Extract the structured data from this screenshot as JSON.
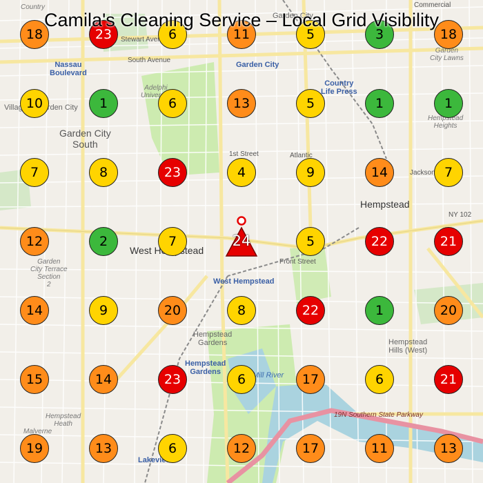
{
  "title": "Camila's Cleaning Service – Local Grid Visibility",
  "business_rank": "24",
  "colors": {
    "green": "#3cb83c",
    "yellow": "#ffd400",
    "orange": "#ff8c1a",
    "red": "#e60000",
    "business": "#e60000"
  },
  "grid": [
    [
      "18",
      "23",
      "6",
      "11",
      "5",
      "3",
      "18"
    ],
    [
      "10",
      "1",
      "6",
      "13",
      "5",
      "1",
      "1"
    ],
    [
      "7",
      "8",
      "23",
      "4",
      "9",
      "14",
      "7"
    ],
    [
      "12",
      "2",
      "7",
      "24",
      "5",
      "22",
      "21"
    ],
    [
      "14",
      "9",
      "20",
      "8",
      "22",
      "1",
      "20"
    ],
    [
      "15",
      "14",
      "23",
      "6",
      "17",
      "6",
      "21"
    ],
    [
      "19",
      "13",
      "6",
      "12",
      "17",
      "11",
      "13"
    ]
  ],
  "map_labels": {
    "garden_city": "Garden City",
    "garden_city_top": "Garden City",
    "nassau_boulevard": "Nassau\nBoulevard",
    "adelphi": "Adelphi\nUniversity",
    "village_garden_city": "Village of Garden City",
    "garden_city_south": "Garden City\nSouth",
    "country_life_press": "Country\nLife Press",
    "garden_city_lawns": "Garden\nCity Lawns",
    "hempstead_heights": "Hempstead\nHeights",
    "hempstead": "Hempstead",
    "west_hempstead": "West Hempstead",
    "west_hempstead_station": "West Hempstead",
    "gc_terrace": "Garden\nCity Terrace\nSection\n2",
    "hempstead_gardens": "Hempstead\nGardens",
    "hempstead_gardens_station": "Hempstead\nGardens",
    "hempstead_hills": "Hempstead\nHills (West)",
    "hempstead_heath": "Hempstead\nHeath",
    "malverne": "Malverne",
    "lakeview": "Lakeview",
    "mill_river": "Mill River",
    "southern_state": "19N Southern State Parkway",
    "ny102": "NY 102",
    "front_street": "Front Street",
    "stewart_avenue": "Stewart Avenue",
    "south_avenue": "South Avenue",
    "first_street": "1st Street",
    "atlantic": "Atlantic",
    "jackson": "Jackson",
    "commercial": "Commercial",
    "country": "Country"
  }
}
